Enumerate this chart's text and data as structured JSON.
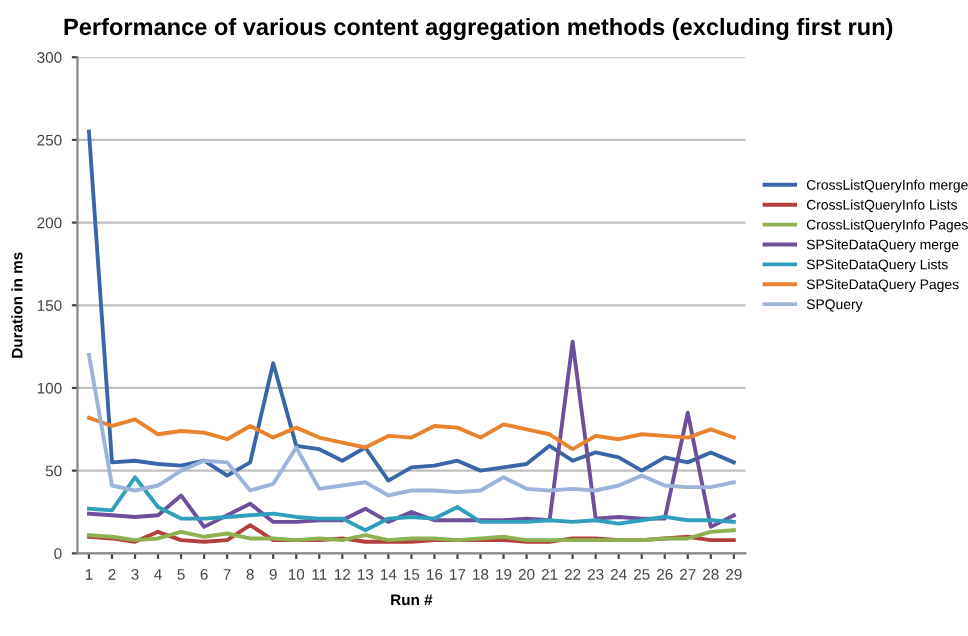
{
  "chart_data": {
    "type": "line",
    "title": "Performance of various content aggregation methods (excluding first run)",
    "xlabel": "Run #",
    "ylabel": "Duration in ms",
    "categories": [
      "1",
      "2",
      "3",
      "4",
      "5",
      "6",
      "7",
      "8",
      "9",
      "10",
      "11",
      "12",
      "13",
      "14",
      "15",
      "16",
      "17",
      "18",
      "19",
      "20",
      "21",
      "22",
      "23",
      "24",
      "25",
      "26",
      "27",
      "28",
      "29"
    ],
    "series": [
      {
        "name": "CrossListQueryInfo merge",
        "color": "#3a66a8",
        "values": [
          255,
          55,
          56,
          54,
          53,
          56,
          47,
          55,
          115,
          65,
          63,
          56,
          64,
          44,
          52,
          53,
          56,
          50,
          52,
          54,
          65,
          56,
          61,
          58,
          50,
          58,
          55,
          61,
          55
        ]
      },
      {
        "name": "CrossListQueryInfo Lists",
        "color": "#b3403c",
        "values": [
          10,
          9,
          7,
          13,
          8,
          7,
          8,
          17,
          8,
          8,
          8,
          9,
          7,
          7,
          7,
          8,
          8,
          8,
          8,
          7,
          7,
          9,
          9,
          8,
          8,
          9,
          10,
          8,
          8
        ]
      },
      {
        "name": "CrossListQueryInfo Pages",
        "color": "#8db051",
        "values": [
          11,
          10,
          8,
          9,
          13,
          10,
          12,
          9,
          9,
          8,
          9,
          8,
          11,
          8,
          9,
          9,
          8,
          9,
          10,
          8,
          8,
          8,
          8,
          8,
          8,
          9,
          9,
          13,
          14
        ]
      },
      {
        "name": "SPSiteDataQuery merge",
        "color": "#6e4f9a",
        "values": [
          24,
          23,
          22,
          23,
          35,
          16,
          23,
          30,
          19,
          19,
          20,
          20,
          27,
          19,
          25,
          20,
          20,
          20,
          20,
          21,
          20,
          128,
          21,
          22,
          21,
          21,
          85,
          16,
          23
        ]
      },
      {
        "name": "SPSiteDataQuery Lists",
        "color": "#2f9fbb",
        "values": [
          27,
          26,
          46,
          28,
          21,
          21,
          22,
          23,
          24,
          22,
          21,
          21,
          14,
          21,
          22,
          21,
          28,
          19,
          19,
          19,
          20,
          19,
          20,
          18,
          20,
          22,
          20,
          20,
          19
        ]
      },
      {
        "name": "SPSiteDataQuery Pages",
        "color": "#e8832e",
        "values": [
          82,
          77,
          81,
          72,
          74,
          73,
          69,
          77,
          70,
          76,
          70,
          67,
          64,
          71,
          70,
          77,
          76,
          70,
          78,
          75,
          72,
          63,
          71,
          69,
          72,
          71,
          70,
          75,
          70
        ]
      },
      {
        "name": "SPQuery",
        "color": "#9cb4da",
        "values": [
          120,
          41,
          38,
          41,
          50,
          56,
          55,
          38,
          42,
          64,
          39,
          41,
          43,
          35,
          38,
          38,
          37,
          38,
          46,
          39,
          38,
          39,
          38,
          41,
          47,
          41,
          40,
          40,
          43
        ]
      }
    ],
    "ylim": [
      0,
      300
    ],
    "yticks": [
      0,
      50,
      100,
      150,
      200,
      250,
      300
    ],
    "grid": "y",
    "legend": "right",
    "marker": "none",
    "line_style": "solid"
  }
}
